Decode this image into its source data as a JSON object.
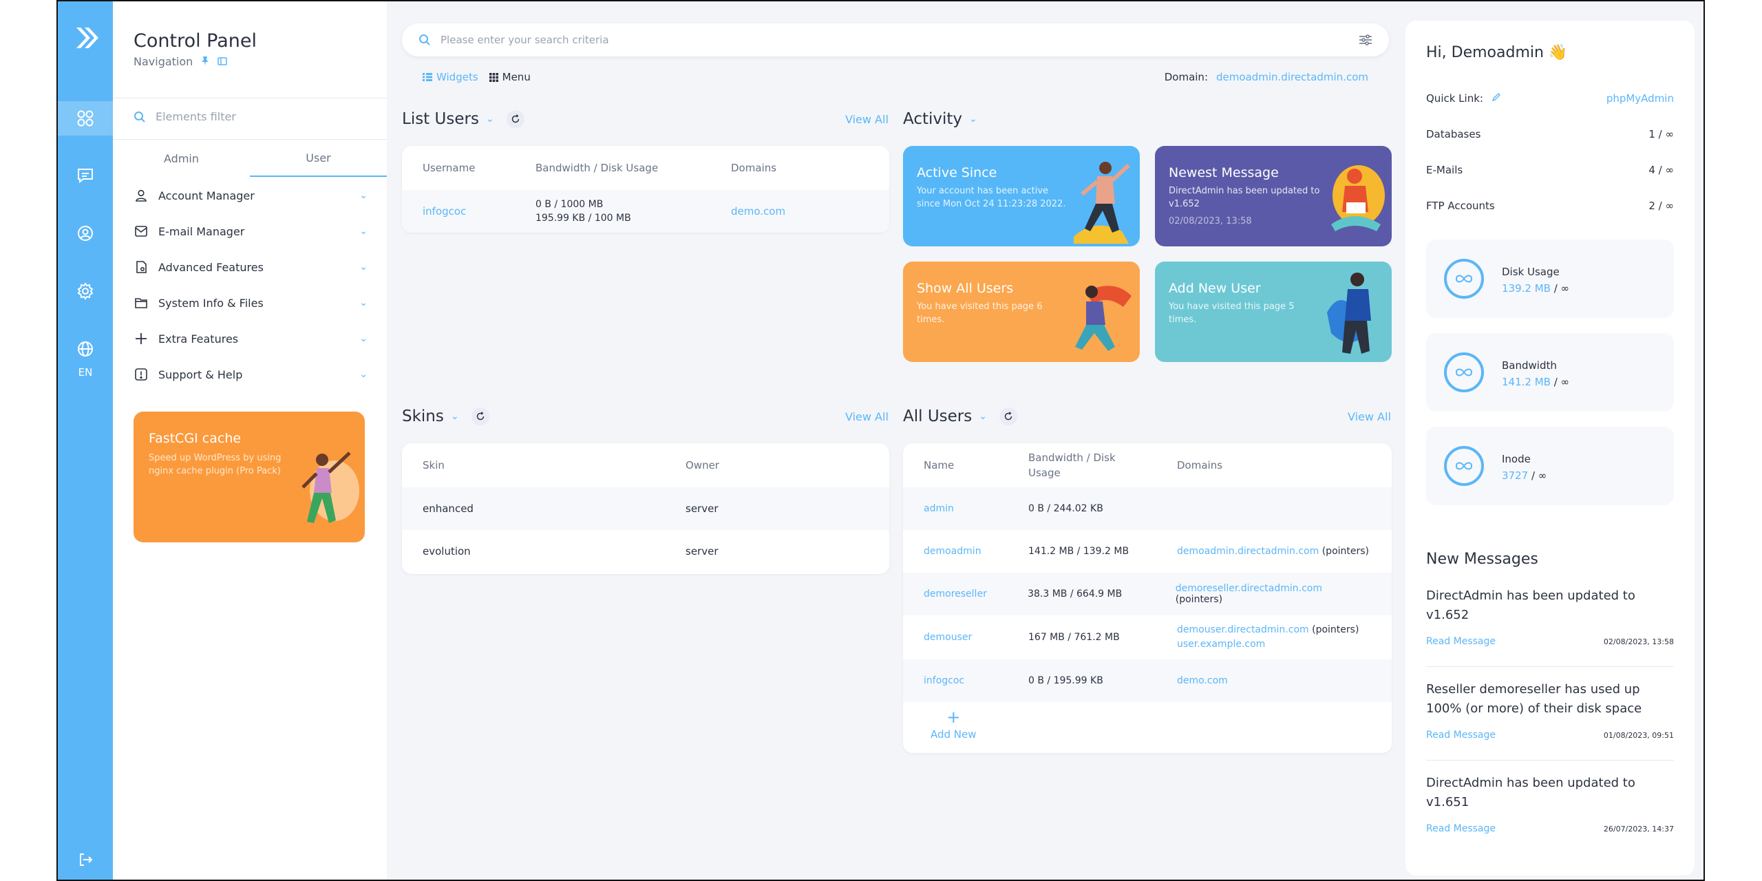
{
  "nav": {
    "title": "Control Panel",
    "subtitle": "Navigation",
    "filter_placeholder": "Elements filter",
    "tabs": [
      "Admin",
      "User"
    ],
    "lang": "EN",
    "menu": [
      {
        "label": "Account Manager",
        "icon": "user-icon"
      },
      {
        "label": "E-mail Manager",
        "icon": "mail-icon"
      },
      {
        "label": "Advanced Features",
        "icon": "advanced-icon"
      },
      {
        "label": "System Info & Files",
        "icon": "folder-icon"
      },
      {
        "label": "Extra Features",
        "icon": "plus-icon"
      },
      {
        "label": "Support & Help",
        "icon": "alert-icon"
      }
    ],
    "promo": {
      "title": "FastCGI cache",
      "desc": "Speed up WordPress by using nginx cache plugin (Pro Pack)"
    }
  },
  "search": {
    "placeholder": "Please enter your search criteria"
  },
  "subbar": {
    "widgets": "Widgets",
    "menu": "Menu",
    "domain_label": "Domain:",
    "domain_value": "demoadmin.directadmin.com"
  },
  "list_users": {
    "title": "List Users",
    "view_all": "View All",
    "headers": [
      "Username",
      "Bandwidth / Disk Usage",
      "Domains"
    ],
    "rows": [
      {
        "username": "infogcoc",
        "bw": "0 B  /  1000 MB",
        "disk": "195.99 KB  /  100 MB",
        "domain": "demo.com"
      }
    ]
  },
  "activity": {
    "title": "Activity",
    "cards": [
      {
        "title": "Active Since",
        "desc": "Your account has been active since Mon Oct 24 11:23:28 2022.",
        "ts": "",
        "color": "#55b7f7"
      },
      {
        "title": "Newest Message",
        "desc": "DirectAdmin has been updated to v1.652",
        "ts": "02/08/2023, 13:58",
        "color": "#5b5aa8"
      },
      {
        "title": "Show All Users",
        "desc": "You have visited this page 6 times.",
        "ts": "",
        "color": "#fba74f"
      },
      {
        "title": "Add New User",
        "desc": "You have visited this page 5 times.",
        "ts": "",
        "color": "#6dc8d4"
      }
    ]
  },
  "skins": {
    "title": "Skins",
    "view_all": "View All",
    "headers": [
      "Skin",
      "Owner"
    ],
    "rows": [
      {
        "skin": "enhanced",
        "owner": "server"
      },
      {
        "skin": "evolution",
        "owner": "server"
      }
    ]
  },
  "all_users": {
    "title": "All Users",
    "view_all": "View All",
    "headers": [
      "Name",
      "Bandwidth / Disk Usage",
      "Domains"
    ],
    "rows": [
      {
        "name": "admin",
        "usage": "0 B / 244.02 KB",
        "domain": "",
        "pointers": "",
        "domain2": ""
      },
      {
        "name": "demoadmin",
        "usage": "141.2 MB / 139.2 MB",
        "domain": "demoadmin.directadmin.com",
        "pointers": "(pointers)",
        "domain2": ""
      },
      {
        "name": "demoreseller",
        "usage": "38.3 MB / 664.9 MB",
        "domain": "demoreseller.directadmin.com",
        "pointers": "(pointers)",
        "domain2": ""
      },
      {
        "name": "demouser",
        "usage": "167 MB / 761.2 MB",
        "domain": "demouser.directadmin.com",
        "pointers": "(pointers)",
        "domain2": "user.example.com"
      },
      {
        "name": "infogcoc",
        "usage": "0 B / 195.99 KB",
        "domain": "demo.com",
        "pointers": "",
        "domain2": ""
      }
    ],
    "add_new": "Add New"
  },
  "right": {
    "greeting": "Hi, Demoadmin 👋",
    "quick_link_label": "Quick Link:",
    "quick_link_value": "phpMyAdmin",
    "kv": [
      {
        "label": "Databases",
        "value": "1 / ∞"
      },
      {
        "label": "E-Mails",
        "value": "4 / ∞"
      },
      {
        "label": "FTP Accounts",
        "value": "2 / ∞"
      }
    ],
    "stats": [
      {
        "label": "Disk Usage",
        "value": "139.2 MB",
        "limit": "∞"
      },
      {
        "label": "Bandwidth",
        "value": "141.2 MB",
        "limit": "∞"
      },
      {
        "label": "Inode",
        "value": "3727",
        "limit": "∞"
      }
    ],
    "messages_title": "New Messages",
    "messages": [
      {
        "text": "DirectAdmin has been updated to v1.652",
        "link": "Read Message",
        "date": "02/08/2023, 13:58"
      },
      {
        "text": "Reseller demoreseller has used up 100% (or more) of their disk space",
        "link": "Read Message",
        "date": "01/08/2023, 09:51"
      },
      {
        "text": "DirectAdmin has been updated to v1.651",
        "link": "Read Message",
        "date": "26/07/2023, 14:37"
      }
    ]
  },
  "colors": {
    "accent": "#5bb6f8",
    "promo": "#fb9a3c"
  }
}
